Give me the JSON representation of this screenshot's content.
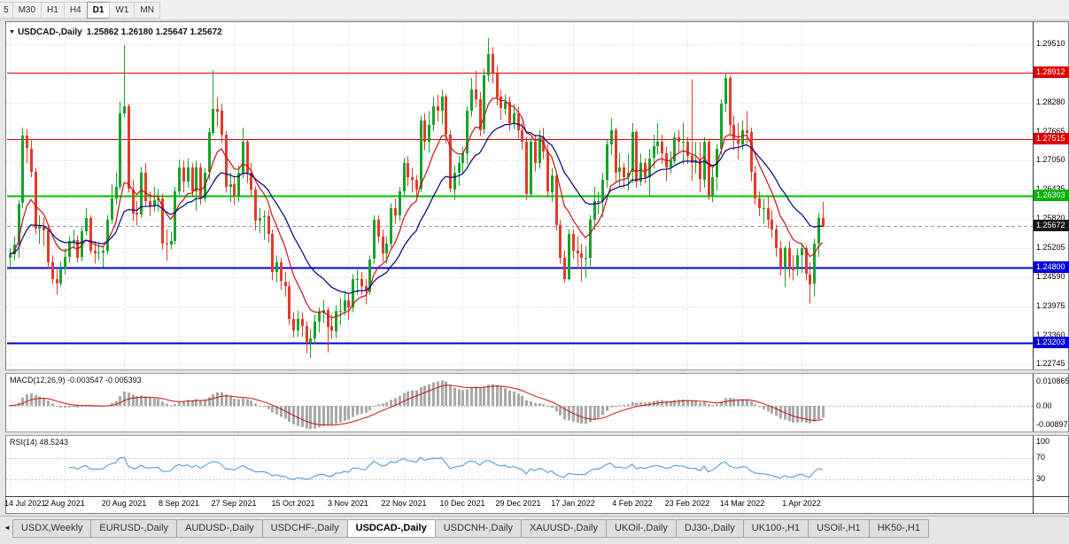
{
  "toolbar": {
    "timeframes": [
      "5",
      "M30",
      "H1",
      "H4",
      "D1",
      "W1",
      "MN"
    ],
    "active": "D1"
  },
  "icons": {
    "chart_menu_arrow": "▼",
    "tab_scroll_left": "◄"
  },
  "chart_data": [
    {
      "type": "candlestick",
      "title": "USDCAD-,Daily",
      "ohlc_text": "1.25862 1.26180 1.25647 1.25672",
      "up_color": "#17a22b",
      "down_color": "#e23b2a",
      "y_range": [
        1.2264,
        1.2998
      ],
      "y_axis_labels": [
        "1.29510",
        "1.28280",
        "1.27665",
        "1.27050",
        "1.26435",
        "1.25820",
        "1.25205",
        "1.24590",
        "1.23975",
        "1.23360",
        "1.22745"
      ],
      "x_tick_indices": [
        0,
        13,
        27,
        40,
        53,
        67,
        80,
        93,
        107,
        120,
        133,
        147,
        160,
        173,
        187
      ],
      "x_tick_labels": [
        "14 Jul 2021",
        "2 Aug 2021",
        "20 Aug 2021",
        "8 Sep 2021",
        "27 Sep 2021",
        "15 Oct 2021",
        "3 Nov 2021",
        "22 Nov 2021",
        "10 Dec 2021",
        "29 Dec 2021",
        "17 Jan 2022",
        "4 Feb 2022",
        "23 Feb 2022",
        "14 Mar 2022",
        "1 Apr 2022"
      ],
      "levels": [
        {
          "price": "1.28912",
          "tag_bg": "#dd0000",
          "line_color": "#e00000",
          "line_width": 1,
          "dash": false
        },
        {
          "price": "1.27515",
          "tag_bg": "#dd0000",
          "line_color": "#e00000",
          "line_width": 1,
          "dash": false
        },
        {
          "price": "1.26303",
          "tag_bg": "#00b400",
          "line_color": "#00c300",
          "line_width": 2,
          "dash": false
        },
        {
          "price": "1.25672",
          "tag_bg": "#161616",
          "line_color": "#9a9a9a",
          "line_width": 1,
          "dash": true,
          "current": true
        },
        {
          "price": "1.24800",
          "tag_bg": "#0000d8",
          "line_color": "#0000e0",
          "line_width": 2,
          "dash": false
        },
        {
          "price": "1.23203",
          "tag_bg": "#0000d8",
          "line_color": "#0000e0",
          "line_width": 2,
          "dash": false
        }
      ],
      "overlays": [
        {
          "type": "ema",
          "period": 9,
          "color": "#cc1111"
        },
        {
          "type": "ema",
          "period": 21,
          "color": "#000080"
        }
      ],
      "first_open": 1.25,
      "candle_format": [
        "high",
        "low",
        "close"
      ],
      "candles": [
        [
          1.252,
          1.2475,
          1.2508
        ],
        [
          1.2545,
          1.2495,
          1.2528
        ],
        [
          1.2622,
          1.25,
          1.2615
        ],
        [
          1.2775,
          1.2605,
          1.2758
        ],
        [
          1.2772,
          1.27,
          1.2731
        ],
        [
          1.2748,
          1.267,
          1.2682
        ],
        [
          1.269,
          1.255,
          1.2562
        ],
        [
          1.259,
          1.253,
          1.2565
        ],
        [
          1.2585,
          1.2525,
          1.2558
        ],
        [
          1.257,
          1.2478,
          1.249
        ],
        [
          1.2505,
          1.2445,
          1.2455
        ],
        [
          1.2475,
          1.2422,
          1.2445
        ],
        [
          1.2492,
          1.244,
          1.2475
        ],
        [
          1.252,
          1.2465,
          1.2502
        ],
        [
          1.2545,
          1.249,
          1.2535
        ],
        [
          1.256,
          1.252,
          1.2538
        ],
        [
          1.2548,
          1.249,
          1.2501
        ],
        [
          1.2565,
          1.2493,
          1.2556
        ],
        [
          1.2605,
          1.2548,
          1.2585
        ],
        [
          1.259,
          1.2508,
          1.2515
        ],
        [
          1.2535,
          1.2488,
          1.251
        ],
        [
          1.253,
          1.2494,
          1.2512
        ],
        [
          1.2525,
          1.248,
          1.2515
        ],
        [
          1.259,
          1.2508,
          1.258
        ],
        [
          1.2655,
          1.2572,
          1.2625
        ],
        [
          1.268,
          1.2612,
          1.265
        ],
        [
          1.283,
          1.2644,
          1.2805
        ],
        [
          1.2949,
          1.2798,
          1.282
        ],
        [
          1.2825,
          1.2638,
          1.2645
        ],
        [
          1.2665,
          1.2578,
          1.2595
        ],
        [
          1.262,
          1.2568,
          1.2592
        ],
        [
          1.2692,
          1.2585,
          1.268
        ],
        [
          1.27,
          1.2608,
          1.262
        ],
        [
          1.264,
          1.2588,
          1.2608
        ],
        [
          1.265,
          1.2598,
          1.2622
        ],
        [
          1.2645,
          1.2598,
          1.2625
        ],
        [
          1.2635,
          1.2518,
          1.253
        ],
        [
          1.256,
          1.2494,
          1.2528
        ],
        [
          1.2555,
          1.2518,
          1.2535
        ],
        [
          1.265,
          1.2528,
          1.264
        ],
        [
          1.2708,
          1.2628,
          1.269
        ],
        [
          1.2705,
          1.2638,
          1.266
        ],
        [
          1.271,
          1.2648,
          1.269
        ],
        [
          1.27,
          1.2628,
          1.264
        ],
        [
          1.2705,
          1.26,
          1.269
        ],
        [
          1.27,
          1.2612,
          1.2625
        ],
        [
          1.269,
          1.2618,
          1.268
        ],
        [
          1.2775,
          1.2665,
          1.2765
        ],
        [
          1.2896,
          1.2758,
          1.2815
        ],
        [
          1.284,
          1.2778,
          1.281
        ],
        [
          1.2825,
          1.2742,
          1.276
        ],
        [
          1.2768,
          1.2638,
          1.265
        ],
        [
          1.268,
          1.2618,
          1.2655
        ],
        [
          1.267,
          1.2612,
          1.263
        ],
        [
          1.2695,
          1.2618,
          1.268
        ],
        [
          1.2775,
          1.2668,
          1.2745
        ],
        [
          1.275,
          1.2658,
          1.268
        ],
        [
          1.27,
          1.2628,
          1.2645
        ],
        [
          1.265,
          1.2558,
          1.258
        ],
        [
          1.2605,
          1.2552,
          1.2585
        ],
        [
          1.26,
          1.2538,
          1.2587
        ],
        [
          1.26,
          1.2532,
          1.255
        ],
        [
          1.256,
          1.2452,
          1.247
        ],
        [
          1.2505,
          1.2448,
          1.249
        ],
        [
          1.25,
          1.2432,
          1.245
        ],
        [
          1.247,
          1.2418,
          1.244
        ],
        [
          1.245,
          1.2358,
          1.237
        ],
        [
          1.2385,
          1.2332,
          1.2345
        ],
        [
          1.2388,
          1.2333,
          1.237
        ],
        [
          1.2385,
          1.2333,
          1.2355
        ],
        [
          1.2365,
          1.2298,
          1.232
        ],
        [
          1.235,
          1.2288,
          1.233
        ],
        [
          1.238,
          1.2318,
          1.2365
        ],
        [
          1.2395,
          1.2342,
          1.2385
        ],
        [
          1.241,
          1.2362,
          1.239
        ],
        [
          1.2395,
          1.23,
          1.2355
        ],
        [
          1.238,
          1.2328,
          1.2345
        ],
        [
          1.24,
          1.233,
          1.2388
        ],
        [
          1.2415,
          1.2358,
          1.2388
        ],
        [
          1.243,
          1.2378,
          1.241
        ],
        [
          1.2425,
          1.2368,
          1.2395
        ],
        [
          1.2465,
          1.2385,
          1.2455
        ],
        [
          1.2475,
          1.2422,
          1.2455
        ],
        [
          1.247,
          1.2422,
          1.244
        ],
        [
          1.2455,
          1.2402,
          1.243
        ],
        [
          1.2505,
          1.2422,
          1.2497
        ],
        [
          1.259,
          1.2488,
          1.258
        ],
        [
          1.259,
          1.2532,
          1.2545
        ],
        [
          1.256,
          1.2492,
          1.251
        ],
        [
          1.2545,
          1.2488,
          1.253
        ],
        [
          1.2615,
          1.2522,
          1.2605
        ],
        [
          1.2625,
          1.2572,
          1.259
        ],
        [
          1.265,
          1.2578,
          1.264
        ],
        [
          1.271,
          1.2632,
          1.27
        ],
        [
          1.2715,
          1.2652,
          1.267
        ],
        [
          1.269,
          1.2638,
          1.2665
        ],
        [
          1.2675,
          1.2628,
          1.2645
        ],
        [
          1.28,
          1.2638,
          1.279
        ],
        [
          1.2805,
          1.2728,
          1.2745
        ],
        [
          1.281,
          1.2722,
          1.278
        ],
        [
          1.284,
          1.2768,
          1.282
        ],
        [
          1.2845,
          1.2788,
          1.281
        ],
        [
          1.2855,
          1.2782,
          1.284
        ],
        [
          1.2846,
          1.2742,
          1.276
        ],
        [
          1.277,
          1.2638,
          1.2645
        ],
        [
          1.2695,
          1.2622,
          1.268
        ],
        [
          1.2715,
          1.2652,
          1.27
        ],
        [
          1.2735,
          1.2678,
          1.272
        ],
        [
          1.282,
          1.2698,
          1.281
        ],
        [
          1.288,
          1.2798,
          1.2855
        ],
        [
          1.2895,
          1.2818,
          1.2835
        ],
        [
          1.285,
          1.2758,
          1.277
        ],
        [
          1.29,
          1.2762,
          1.2885
        ],
        [
          1.2964,
          1.2872,
          1.293
        ],
        [
          1.2945,
          1.2868,
          1.289
        ],
        [
          1.2905,
          1.2822,
          1.284
        ],
        [
          1.2855,
          1.2792,
          1.2815
        ],
        [
          1.2845,
          1.2802,
          1.283
        ],
        [
          1.284,
          1.2768,
          1.2785
        ],
        [
          1.2825,
          1.2772,
          1.2805
        ],
        [
          1.282,
          1.2752,
          1.277
        ],
        [
          1.2785,
          1.2728,
          1.2745
        ],
        [
          1.2755,
          1.2622,
          1.2635
        ],
        [
          1.2755,
          1.2628,
          1.2745
        ],
        [
          1.276,
          1.2682,
          1.27
        ],
        [
          1.277,
          1.2688,
          1.2755
        ],
        [
          1.2775,
          1.2708,
          1.2725
        ],
        [
          1.274,
          1.2628,
          1.264
        ],
        [
          1.269,
          1.2618,
          1.2675
        ],
        [
          1.268,
          1.2558,
          1.257
        ],
        [
          1.258,
          1.2488,
          1.25
        ],
        [
          1.2515,
          1.2448,
          1.2455
        ],
        [
          1.256,
          1.2452,
          1.255
        ],
        [
          1.256,
          1.2498,
          1.2515
        ],
        [
          1.2545,
          1.2478,
          1.251
        ],
        [
          1.253,
          1.245,
          1.25
        ],
        [
          1.2525,
          1.2458,
          1.25
        ],
        [
          1.259,
          1.2478,
          1.258
        ],
        [
          1.265,
          1.2558,
          1.262
        ],
        [
          1.264,
          1.2592,
          1.262
        ],
        [
          1.268,
          1.2585,
          1.2665
        ],
        [
          1.275,
          1.2648,
          1.274
        ],
        [
          1.2795,
          1.2718,
          1.277
        ],
        [
          1.2775,
          1.2658,
          1.268
        ],
        [
          1.272,
          1.2652,
          1.269
        ],
        [
          1.27,
          1.2648,
          1.267
        ],
        [
          1.272,
          1.2642,
          1.268
        ],
        [
          1.2785,
          1.2658,
          1.2765
        ],
        [
          1.277,
          1.2648,
          1.266
        ],
        [
          1.272,
          1.2652,
          1.27
        ],
        [
          1.271,
          1.2658,
          1.267
        ],
        [
          1.273,
          1.2632,
          1.271
        ],
        [
          1.276,
          1.2688,
          1.2735
        ],
        [
          1.2785,
          1.2718,
          1.2745
        ],
        [
          1.276,
          1.2698,
          1.272
        ],
        [
          1.2735,
          1.2662,
          1.269
        ],
        [
          1.2725,
          1.2678,
          1.2705
        ],
        [
          1.2765,
          1.2698,
          1.2755
        ],
        [
          1.277,
          1.2722,
          1.2745
        ],
        [
          1.2785,
          1.2698,
          1.2745
        ],
        [
          1.2755,
          1.2698,
          1.2715
        ],
        [
          1.2877,
          1.2662,
          1.27
        ],
        [
          1.2745,
          1.2678,
          1.2705
        ],
        [
          1.2745,
          1.2638,
          1.2665
        ],
        [
          1.2755,
          1.2648,
          1.2745
        ],
        [
          1.275,
          1.2622,
          1.263
        ],
        [
          1.269,
          1.2618,
          1.267
        ],
        [
          1.274,
          1.2642,
          1.273
        ],
        [
          1.2835,
          1.2718,
          1.2825
        ],
        [
          1.289,
          1.2808,
          1.288
        ],
        [
          1.2885,
          1.2762,
          1.278
        ],
        [
          1.28,
          1.2728,
          1.275
        ],
        [
          1.2785,
          1.2708,
          1.274
        ],
        [
          1.279,
          1.2728,
          1.277
        ],
        [
          1.281,
          1.2742,
          1.2765
        ],
        [
          1.2775,
          1.2662,
          1.268
        ],
        [
          1.2695,
          1.2612,
          1.2625
        ],
        [
          1.264,
          1.2588,
          1.2605
        ],
        [
          1.2625,
          1.2572,
          1.2605
        ],
        [
          1.263,
          1.2562,
          1.258
        ],
        [
          1.26,
          1.2542,
          1.256
        ],
        [
          1.257,
          1.2502,
          1.252
        ],
        [
          1.2535,
          1.2462,
          1.248
        ],
        [
          1.2525,
          1.2438,
          1.252
        ],
        [
          1.2535,
          1.2458,
          1.248
        ],
        [
          1.2505,
          1.2452,
          1.2475
        ],
        [
          1.252,
          1.2462,
          1.2505
        ],
        [
          1.253,
          1.2468,
          1.252
        ],
        [
          1.2525,
          1.2452,
          1.2465
        ],
        [
          1.249,
          1.2403,
          1.2445
        ],
        [
          1.254,
          1.2418,
          1.253
        ],
        [
          1.2595,
          1.2502,
          1.2585
        ],
        [
          1.2618,
          1.2565,
          1.2567
        ]
      ]
    },
    {
      "type": "macd_histogram",
      "label": "MACD(12,26,9) -0.003547 -0.005393",
      "params": [
        12,
        26,
        9
      ],
      "y_axis_labels": [
        "0.010865",
        "0.00",
        "-0.00897"
      ],
      "y_range": [
        -0.00897,
        0.010865
      ],
      "histogram_color": "#a9a9a9",
      "signal_color": "#cc1111",
      "zero_line_color": "#bbbbbb"
    },
    {
      "type": "line",
      "label": "RSI(14) 48.5243",
      "period": 14,
      "levels": [
        70,
        30
      ],
      "y_axis_labels": [
        "100",
        "70",
        "30"
      ],
      "y_range": [
        0,
        110
      ],
      "line_color": "#4591d6",
      "level_line_color": "#c6c6c6"
    }
  ],
  "tab_bar": {
    "tabs": [
      "USDX,Weekly",
      "EURUSD-,Daily",
      "AUDUSD-,Daily",
      "USDCHF-,Daily",
      "USDCAD-,Daily",
      "USDCNH-,Daily",
      "XAUUSD-,Daily",
      "UKOil-,Daily",
      "DJ30-,Daily",
      "UK100-,H1",
      "USOil-,H1",
      "HK50-,H1"
    ],
    "active": "USDCAD-,Daily"
  }
}
